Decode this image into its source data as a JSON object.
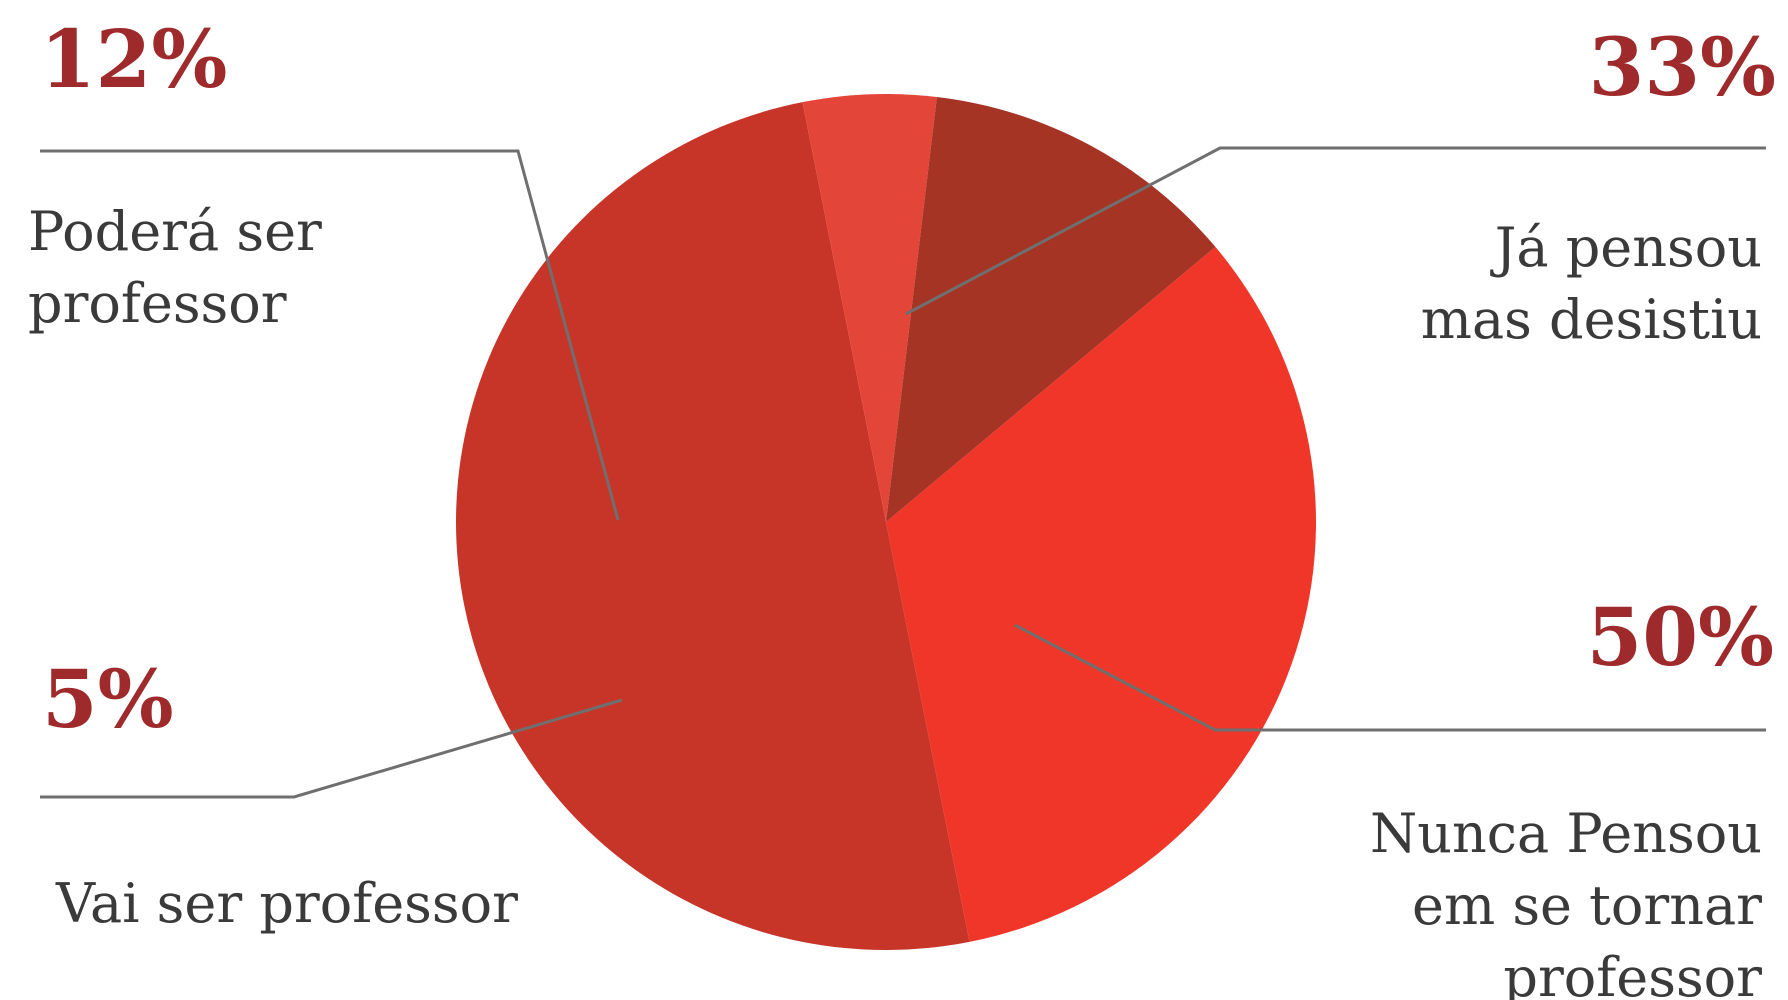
{
  "chart_data": {
    "type": "pie",
    "slices": [
      {
        "label": "Já pensou mas desistiu",
        "label_lines": [
          "Já pensou",
          "mas desistiu"
        ],
        "value": 33,
        "percent_label": "33%",
        "color": "#f03629"
      },
      {
        "label": "Nunca Pensou em se tornar professor",
        "label_lines": [
          "Nunca Pensou",
          "em se tornar",
          "professor"
        ],
        "value": 50,
        "percent_label": "50%",
        "color": "#c73529"
      },
      {
        "label": "Vai ser professor",
        "label_lines": [
          "Vai ser professor"
        ],
        "value": 5,
        "percent_label": "5%",
        "color": "#e44539"
      },
      {
        "label": "Poderá ser professor",
        "label_lines": [
          "Poderá ser",
          "professor"
        ],
        "value": 12,
        "percent_label": "12%",
        "color": "#a63425"
      }
    ]
  },
  "colors": {
    "percent_text": "#9e2a2b",
    "label_text": "#3a3a3a",
    "leader_line": "#6f6f6f"
  }
}
